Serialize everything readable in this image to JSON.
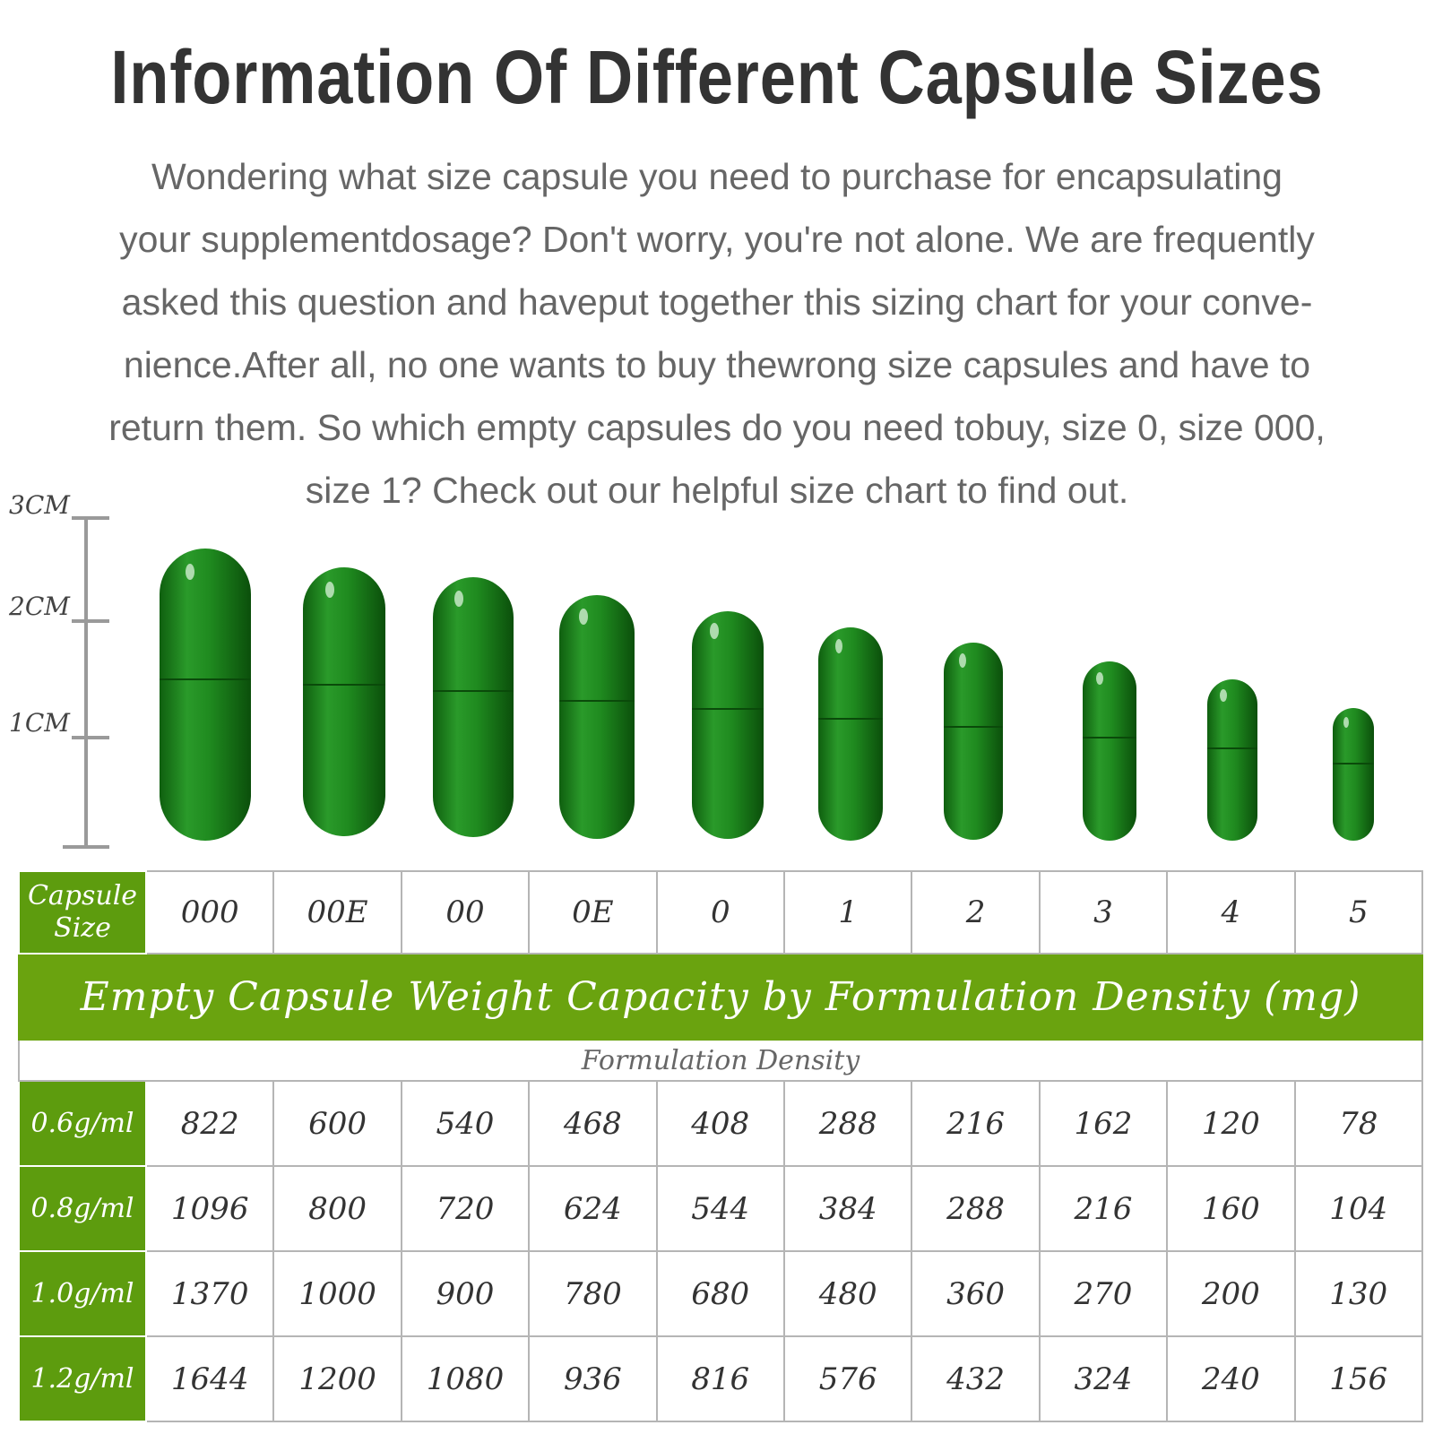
{
  "headline": "Information Of Different Capsule Sizes",
  "intro_lines": [
    "Wondering what size capsule you need to purchase for encapsulating",
    "your supplementdosage? Don't worry, you're not alone. We are frequently",
    "asked this question and haveput together this sizing chart for your conve-",
    "nience.After all, no one wants to buy thewrong size capsules and have to",
    "return them. So which empty capsules do you need tobuy, size 0, size 000,",
    "size 1? Check out our helpful size chart to find out."
  ],
  "scale": {
    "labels": [
      "3CM",
      "2CM",
      "1CM"
    ],
    "max_cm": 3
  },
  "colors": {
    "capsule": "#1f8a1f",
    "capsule_dark": "#0f5f0f",
    "header_green": "#5d9c0e",
    "banner_green": "#6aa30f"
  },
  "table": {
    "size_header": "Capsule Size",
    "sizes": [
      "000",
      "00E",
      "00",
      "0E",
      "0",
      "1",
      "2",
      "3",
      "4",
      "5"
    ],
    "banner": "Empty Capsule Weight Capacity by Formulation Density (mg)",
    "subheader": "Formulation Density",
    "rows": [
      {
        "density": "0.6g/ml",
        "values": [
          "822",
          "600",
          "540",
          "468",
          "408",
          "288",
          "216",
          "162",
          "120",
          "78"
        ]
      },
      {
        "density": "0.8g/ml",
        "values": [
          "1096",
          "800",
          "720",
          "624",
          "544",
          "384",
          "288",
          "216",
          "160",
          "104"
        ]
      },
      {
        "density": "1.0g/ml",
        "values": [
          "1370",
          "1000",
          "900",
          "780",
          "680",
          "480",
          "360",
          "270",
          "200",
          "130"
        ]
      },
      {
        "density": "1.2g/ml",
        "values": [
          "1644",
          "1200",
          "1080",
          "936",
          "816",
          "576",
          "432",
          "324",
          "240",
          "156"
        ]
      }
    ]
  }
}
